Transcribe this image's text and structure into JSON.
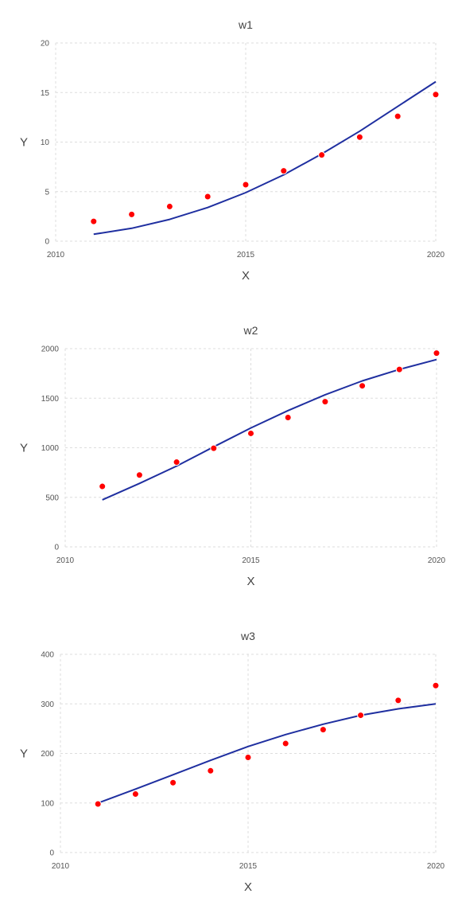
{
  "colors": {
    "line": "#1f2fa0",
    "points": "#ff0000",
    "grid": "#dddddd",
    "text": "#444444"
  },
  "chart_data": [
    {
      "type": "scatter",
      "title": "w1",
      "xlabel": "X",
      "ylabel": "Y",
      "xlim": [
        2010,
        2020
      ],
      "ylim": [
        0,
        20
      ],
      "xticks": [
        2010,
        2015,
        2020
      ],
      "yticks": [
        0,
        5,
        10,
        15,
        20
      ],
      "grid": true,
      "series": [
        {
          "kind": "points",
          "x": [
            2011,
            2012,
            2013,
            2014,
            2015,
            2016,
            2017,
            2018,
            2019,
            2020
          ],
          "y": [
            2.0,
            2.7,
            3.5,
            4.5,
            5.7,
            7.1,
            8.7,
            10.5,
            12.6,
            14.8
          ]
        },
        {
          "kind": "line",
          "x": [
            2011,
            2012,
            2013,
            2014,
            2015,
            2016,
            2017,
            2018,
            2019,
            2020
          ],
          "y": [
            0.7,
            1.3,
            2.2,
            3.4,
            4.9,
            6.7,
            8.8,
            11.1,
            13.6,
            16.1
          ]
        }
      ]
    },
    {
      "type": "scatter",
      "title": "w2",
      "xlabel": "X",
      "ylabel": "Y",
      "xlim": [
        2010,
        2020
      ],
      "ylim": [
        0,
        2000
      ],
      "xticks": [
        2010,
        2015,
        2020
      ],
      "yticks": [
        0,
        500,
        1000,
        1500,
        2000
      ],
      "grid": true,
      "series": [
        {
          "kind": "points",
          "x": [
            2011,
            2012,
            2013,
            2014,
            2015,
            2016,
            2017,
            2018,
            2019,
            2020
          ],
          "y": [
            610,
            725,
            855,
            995,
            1145,
            1305,
            1465,
            1625,
            1790,
            1955
          ]
        },
        {
          "kind": "line",
          "x": [
            2011,
            2012,
            2013,
            2014,
            2015,
            2016,
            2017,
            2018,
            2019,
            2020
          ],
          "y": [
            475,
            640,
            815,
            1010,
            1200,
            1375,
            1535,
            1675,
            1790,
            1890
          ]
        }
      ]
    },
    {
      "type": "scatter",
      "title": "w3",
      "xlabel": "X",
      "ylabel": "Y",
      "xlim": [
        2010,
        2020
      ],
      "ylim": [
        0,
        400
      ],
      "xticks": [
        2010,
        2015,
        2020
      ],
      "yticks": [
        0,
        100,
        200,
        300,
        400
      ],
      "grid": true,
      "series": [
        {
          "kind": "points",
          "x": [
            2011,
            2012,
            2013,
            2014,
            2015,
            2016,
            2017,
            2018,
            2019,
            2020
          ],
          "y": [
            98,
            118,
            141,
            165,
            192,
            220,
            248,
            277,
            307,
            337
          ]
        },
        {
          "kind": "line",
          "x": [
            2011,
            2012,
            2013,
            2014,
            2015,
            2016,
            2017,
            2018,
            2019,
            2020
          ],
          "y": [
            100,
            128,
            157,
            186,
            214,
            238,
            259,
            277,
            290,
            300
          ]
        }
      ]
    }
  ]
}
